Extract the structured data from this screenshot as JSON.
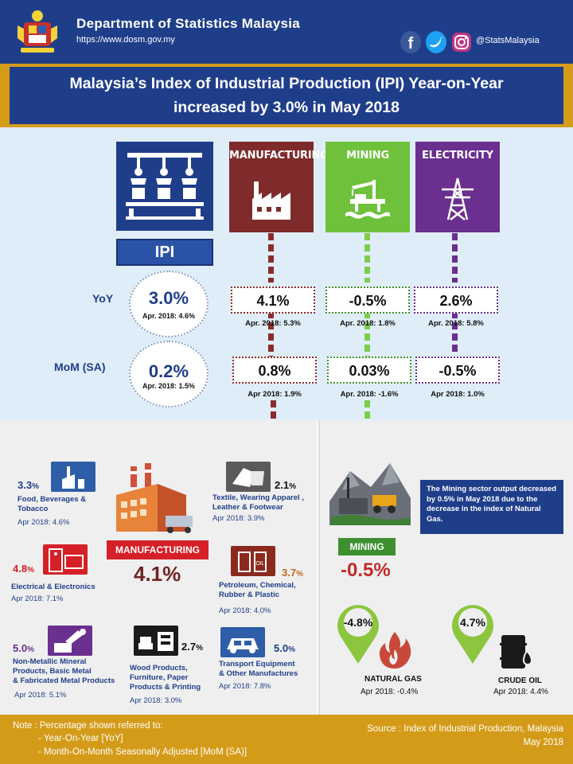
{
  "header": {
    "department": "Department of Statistics  Malaysia",
    "url": "https://www.dosm.gov.my",
    "social_handle": "@StatsMalaysia",
    "colors": {
      "header_bg": "#1f3e8a",
      "accent": "#d49b19"
    },
    "icons": [
      "coat-of-arms-logo",
      "facebook-icon",
      "twitter-icon",
      "instagram-icon"
    ]
  },
  "title": {
    "line1": "Malaysia’s Index of Industrial Production (IPI) Year-on-Year",
    "line2": "increased by 3.0% in May 2018"
  },
  "ipi": {
    "label": "IPI",
    "yoy_label": "YoY",
    "yoy_value": "3.0%",
    "yoy_prev": "Apr. 2018: 4.6%",
    "mom_label": "MoM (SA)",
    "mom_value": "0.2%",
    "mom_prev": "Apr. 2018: 1.5%"
  },
  "sectors": [
    {
      "name": "MANUFACTURING",
      "color": "#8b2c2c",
      "yoy": "4.1%",
      "yoy_prev": "Apr. 2018: 5.3%",
      "mom": "0.8%",
      "mom_prev": "Apr 2018: 1.9%"
    },
    {
      "name": "MINING",
      "color": "#7ccd4a",
      "yoy": "-0.5%",
      "yoy_prev": "Apr. 2018: 1.8%",
      "mom": "0.03%",
      "mom_prev": "Apr. 2018: -1.6%"
    },
    {
      "name": "ELECTRICITY",
      "color": "#6a2f8f",
      "yoy": "2.6%",
      "yoy_prev": "Apr. 2018: 5.8%",
      "mom": "-0.5%",
      "mom_prev": "Apr 2018: 1.0%"
    }
  ],
  "manufacturing": {
    "label": "MANUFACTURING",
    "value": "4.1%",
    "categories": [
      {
        "pct": "3.3",
        "unit": "%",
        "name1": "Food, Beverages &",
        "name2": "Tobacco",
        "name3": "",
        "prev": "Apr 2018: 4.6%",
        "icon": "factory-icon"
      },
      {
        "pct": "2.1",
        "unit": "%",
        "name1": "Textile, Wearing  Apparel ,",
        "name2": "Leather & Footwear",
        "name3": "",
        "prev": "Apr 2018: 3.9%",
        "icon": "textile-icon"
      },
      {
        "pct": "4.8",
        "unit": "%",
        "name1": "Electrical & Electronics",
        "name2": "",
        "name3": "",
        "prev": "Apr 2018: 7.1%",
        "icon": "electronics-icon"
      },
      {
        "pct": "3.7",
        "unit": "%",
        "name1": "Petroleum, Chemical,",
        "name2": "Rubber & Plastic",
        "name3": "",
        "prev": "Apr 2018: 4.0%",
        "icon": "oil-barrel-icon"
      },
      {
        "pct": "5.0",
        "unit": "%",
        "name1": "Non-Metallic Mineral",
        "name2": "Products, Basic Metal",
        "name3": "& Fabricated Metal Products",
        "prev": "Apr 2018: 5.1%",
        "icon": "metal-machine-icon"
      },
      {
        "pct": "2.7",
        "unit": "%",
        "name1": "Wood Products,",
        "name2": "Furniture, Paper",
        "name3": "Products & Printing",
        "prev": "Apr 2018: 3.0%",
        "icon": "furniture-icon"
      },
      {
        "pct": "5.0",
        "unit": "%",
        "name1": "Transport Equipment",
        "name2": "& Other Manufactures",
        "name3": "",
        "prev": "Apr 2018: 7.8%",
        "icon": "car-icon"
      }
    ]
  },
  "mining": {
    "label": "MINING",
    "value": "-0.5%",
    "note": "The Mining sector output decreased by 0.5% in May 2018 due to the decrease in the index of Natural Gas.",
    "natural_gas": {
      "value": "-4.8%",
      "name": "NATURAL GAS",
      "prev": "Apr 2018: -0.4%"
    },
    "crude_oil": {
      "value": "4.7%",
      "name": "CRUDE OIL",
      "prev": "Apr 2018: 4.4%"
    }
  },
  "footer": {
    "note1": "Note :   Percentage shown referred to:",
    "note2": "- Year-On-Year [YoY]",
    "note3": "- Month-On-Month Seasonally Adjusted [MoM (SA)]",
    "source": "Source : Index of Industrial Production, Malaysia",
    "date": "May 2018"
  }
}
